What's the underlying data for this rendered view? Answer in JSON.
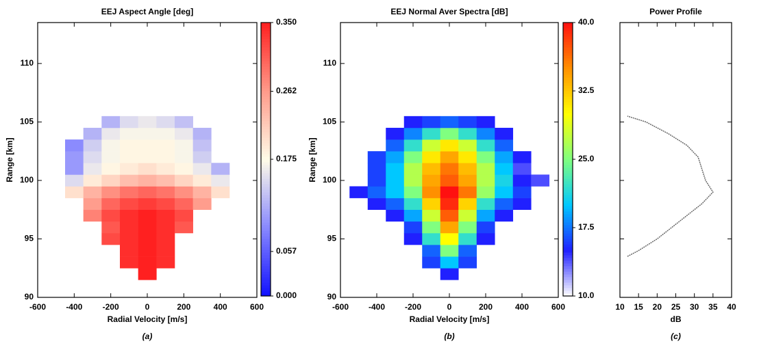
{
  "chart_data": [
    {
      "type": "heatmap",
      "title": "EEJ Aspect Angle [deg]",
      "x_label": "Radial Velocity [m/s]",
      "y_label": "Range [km]",
      "caption": "(a)",
      "x": [
        -500,
        -400,
        -300,
        -200,
        -100,
        0,
        100,
        200,
        300,
        400,
        500
      ],
      "y": [
        92,
        93,
        94,
        95,
        96,
        97,
        98,
        99,
        100,
        101,
        102,
        103,
        104,
        105
      ],
      "values": [
        [
          null,
          null,
          null,
          null,
          null,
          0.35,
          null,
          null,
          null,
          null,
          null
        ],
        [
          null,
          null,
          null,
          null,
          0.34,
          0.35,
          0.34,
          null,
          null,
          null,
          null
        ],
        [
          null,
          null,
          null,
          null,
          0.34,
          0.35,
          0.34,
          null,
          null,
          null,
          null
        ],
        [
          null,
          null,
          null,
          0.32,
          0.34,
          0.35,
          0.34,
          null,
          null,
          null,
          null
        ],
        [
          null,
          null,
          null,
          0.31,
          0.34,
          0.35,
          0.34,
          0.31,
          null,
          null,
          null
        ],
        [
          null,
          null,
          0.28,
          0.32,
          0.34,
          0.35,
          0.34,
          0.32,
          null,
          null,
          null
        ],
        [
          null,
          null,
          0.26,
          0.3,
          0.32,
          0.33,
          0.32,
          0.3,
          0.26,
          null,
          null
        ],
        [
          null,
          0.2,
          0.24,
          0.27,
          0.29,
          0.3,
          0.29,
          0.27,
          0.24,
          0.2,
          null
        ],
        [
          null,
          0.15,
          0.19,
          0.21,
          0.23,
          0.24,
          0.23,
          0.21,
          0.19,
          0.16,
          null
        ],
        [
          null,
          0.1,
          0.16,
          0.18,
          0.19,
          0.2,
          0.19,
          0.18,
          0.16,
          0.12,
          null
        ],
        [
          null,
          0.1,
          0.15,
          0.17,
          0.18,
          0.18,
          0.18,
          0.17,
          0.14,
          null,
          null
        ],
        [
          null,
          0.09,
          0.14,
          0.17,
          0.18,
          0.18,
          0.18,
          0.17,
          0.13,
          null,
          null
        ],
        [
          null,
          null,
          0.12,
          0.16,
          0.17,
          0.17,
          0.17,
          0.16,
          0.12,
          null,
          null
        ],
        [
          null,
          null,
          null,
          0.12,
          0.15,
          0.16,
          0.15,
          0.13,
          null,
          null,
          null
        ]
      ],
      "xlim": [
        -600,
        600
      ],
      "xticks": [
        -600,
        -400,
        -200,
        0,
        200,
        400,
        600
      ],
      "ylim": [
        90,
        113.5
      ],
      "yticks": [
        90,
        95,
        100,
        105,
        110
      ],
      "zlim": [
        0,
        0.35
      ],
      "zticks": [
        {
          "value": 0,
          "label": "0.000"
        },
        {
          "value": 0.057,
          "label": "0.057"
        },
        {
          "value": 0.175,
          "label": "0.175"
        },
        {
          "value": 0.262,
          "label": "0.262"
        },
        {
          "value": 0.35,
          "label": "0.350"
        }
      ],
      "colormap": [
        "#1010ff",
        "#8888ff",
        "#fffce8",
        "#ff9a8a",
        "#ff2020"
      ]
    },
    {
      "type": "heatmap",
      "title": "EEJ Normal Aver Spectra [dB]",
      "x_label": "Radial Velocity [m/s]",
      "y_label": "Range [km]",
      "caption": "(b)",
      "x": [
        -500,
        -400,
        -300,
        -200,
        -100,
        0,
        100,
        200,
        300,
        400,
        500
      ],
      "y": [
        92,
        93,
        94,
        95,
        96,
        97,
        98,
        99,
        100,
        101,
        102,
        103,
        104,
        105
      ],
      "values": [
        [
          null,
          null,
          null,
          null,
          null,
          15,
          null,
          null,
          null,
          null,
          null
        ],
        [
          null,
          null,
          null,
          null,
          16,
          20,
          16,
          null,
          null,
          null,
          null
        ],
        [
          null,
          null,
          null,
          null,
          17,
          25,
          17,
          null,
          null,
          null,
          null
        ],
        [
          null,
          null,
          null,
          15,
          22,
          30,
          22,
          15,
          null,
          null,
          null
        ],
        [
          null,
          null,
          null,
          16,
          25,
          34,
          25,
          16,
          null,
          null,
          null
        ],
        [
          null,
          null,
          15,
          19,
          28,
          37,
          28,
          19,
          15,
          null,
          null
        ],
        [
          null,
          15,
          17,
          22,
          32,
          39,
          32,
          22,
          17,
          15,
          null
        ],
        [
          15,
          17,
          20,
          25,
          35,
          40,
          36,
          26,
          20,
          16,
          null
        ],
        [
          null,
          16,
          20,
          27,
          34,
          37,
          34,
          27,
          21,
          15,
          14
        ],
        [
          null,
          16,
          20,
          27,
          33,
          36,
          33,
          27,
          20,
          14,
          null
        ],
        [
          null,
          16,
          19,
          25,
          31,
          34,
          31,
          25,
          19,
          15,
          null
        ],
        [
          null,
          null,
          17,
          22,
          28,
          31,
          28,
          22,
          17,
          null,
          null
        ],
        [
          null,
          null,
          15,
          18,
          22,
          25,
          22,
          18,
          15,
          null,
          null
        ],
        [
          null,
          null,
          null,
          15,
          16,
          17,
          16,
          15,
          null,
          null,
          null
        ]
      ],
      "xlim": [
        -600,
        600
      ],
      "xticks": [
        -600,
        -400,
        -200,
        0,
        200,
        400,
        600
      ],
      "ylim": [
        90,
        113.5
      ],
      "yticks": [
        90,
        95,
        100,
        105,
        110
      ],
      "zlim": [
        10,
        40
      ],
      "zticks": [
        {
          "value": 10,
          "label": "10.0"
        },
        {
          "value": 17.5,
          "label": "17.5"
        },
        {
          "value": 25,
          "label": "25.0"
        },
        {
          "value": 32.5,
          "label": "32.5"
        },
        {
          "value": 40,
          "label": "40.0"
        }
      ],
      "colormap": [
        "#ffffff",
        "#2020ff",
        "#00c8ff",
        "#80ff80",
        "#ffff00",
        "#ff9000",
        "#ff1010"
      ]
    },
    {
      "type": "line",
      "title": "Power Profile",
      "x_label": "dB",
      "caption": "(c)",
      "x": [
        12,
        15,
        20,
        24,
        28,
        32,
        35,
        33,
        32,
        31,
        28,
        23,
        17,
        12
      ],
      "values": [
        93.5,
        94,
        95,
        96,
        97,
        98,
        99,
        100,
        101,
        102,
        103,
        104,
        105,
        105.5
      ],
      "color": "#666666",
      "xlim": [
        10,
        40
      ],
      "xticks": [
        10,
        15,
        20,
        25,
        30,
        35,
        40
      ],
      "ylim": [
        90,
        113.5
      ],
      "yticks": [
        90,
        95,
        100,
        105,
        110
      ]
    }
  ]
}
